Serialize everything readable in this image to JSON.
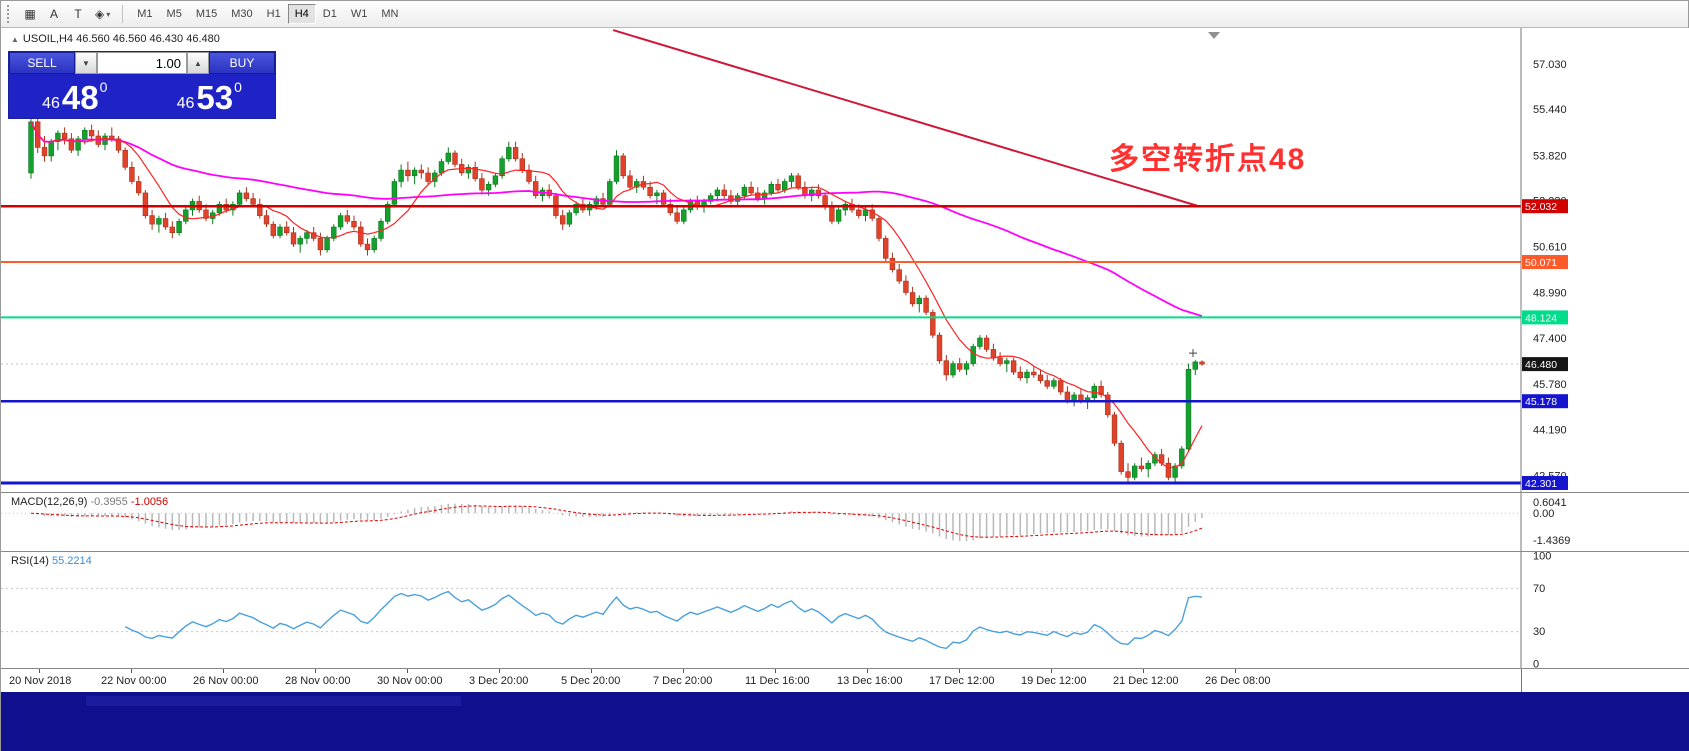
{
  "toolbar": {
    "tools": [
      {
        "name": "grid-tool",
        "glyph": "▦",
        "dropdown": false
      },
      {
        "name": "arrow-text-tool",
        "glyph": "A",
        "dropdown": false
      },
      {
        "name": "text-label-tool",
        "glyph": "T",
        "dropdown": false
      },
      {
        "name": "shapes-tool",
        "glyph": "◈",
        "dropdown": true
      }
    ],
    "timeframes": [
      "M1",
      "M5",
      "M15",
      "M30",
      "H1",
      "H4",
      "D1",
      "W1",
      "MN"
    ],
    "active_timeframe": "H4"
  },
  "header": {
    "collapse_icon": "▲",
    "symbol_line": "USOIL,H4 46.560 46.560 46.430 46.480"
  },
  "one_click": {
    "sell_label": "SELL",
    "buy_label": "BUY",
    "volume": "1.00",
    "spin_down": "▼",
    "spin_up": "▲",
    "sell_price": {
      "prefix": "46",
      "main": "48",
      "sup": "0"
    },
    "buy_price": {
      "prefix": "46",
      "main": "53",
      "sup": "0"
    }
  },
  "macd": {
    "name": "MACD(12,26,9)",
    "value1": "-0.3955",
    "value2": "-1.0056",
    "axis": [
      "0.6041",
      "0.00",
      "-1.4369"
    ],
    "hist_color": "#b8b8b8",
    "signal_color": "#e00000"
  },
  "rsi": {
    "name": "RSI(14)",
    "value": "55.2214",
    "axis": [
      "100",
      "70",
      "30",
      "0"
    ],
    "levels": [
      70,
      30
    ],
    "line_color": "#4aa0dc"
  },
  "chart_data": {
    "type": "candlestick",
    "symbol": "USOIL",
    "timeframe": "H4",
    "ohlc_current": [
      46.56,
      46.56,
      46.43,
      46.48
    ],
    "annotation": {
      "text": "多空转折点48",
      "color": "#ff3030"
    },
    "price_axis_labels": [
      57.03,
      55.44,
      53.82,
      52.23,
      50.61,
      48.99,
      47.4,
      45.78,
      44.19,
      42.57
    ],
    "hlines": [
      {
        "price": 52.032,
        "label": "52.032",
        "color": "#d00000",
        "width": 2.5
      },
      {
        "price": 50.071,
        "label": "50.071",
        "color": "#ff5b2a",
        "width": 2
      },
      {
        "price": 48.124,
        "label": "48.124",
        "color": "#00dd8a",
        "width": 2
      },
      {
        "price": 45.178,
        "label": "45.178",
        "color": "#1515cd",
        "width": 2.5
      },
      {
        "price": 42.301,
        "label": "42.301",
        "color": "#1515cd",
        "width": 3
      }
    ],
    "current_price": {
      "price": 46.48,
      "label": "46.480",
      "color": "#151515"
    },
    "trendline": {
      "from": {
        "bar": 86.5,
        "price": 58.22
      },
      "to": {
        "bar": 173.4,
        "price": 52.04
      },
      "color": "#d01535"
    },
    "ma_lines": [
      {
        "period": 75,
        "color": "#ff00ff",
        "width": 1.8
      },
      {
        "period": 8,
        "color": "#ff2222",
        "width": 1.2
      }
    ],
    "colors": {
      "up_fill": "#14a02d",
      "up_stroke": "#0c7a20",
      "down_fill": "#e0432a",
      "down_stroke": "#a8321e"
    },
    "time_labels": [
      "20 Nov 2018",
      "22 Nov 00:00",
      "26 Nov 00:00",
      "28 Nov 00:00",
      "30 Nov 00:00",
      "3 Dec 20:00",
      "5 Dec 20:00",
      "7 Dec 20:00",
      "11 Dec 16:00",
      "13 Dec 16:00",
      "17 Dec 12:00",
      "19 Dec 12:00",
      "21 Dec 12:00",
      "26 Dec 08:00"
    ],
    "candles": [
      [
        53.2,
        55.3,
        53.0,
        55.0
      ],
      [
        55.0,
        55.1,
        53.9,
        54.1
      ],
      [
        54.1,
        54.5,
        53.6,
        53.8
      ],
      [
        53.8,
        54.4,
        53.6,
        54.3
      ],
      [
        54.3,
        54.7,
        54.0,
        54.6
      ],
      [
        54.6,
        54.8,
        54.2,
        54.4
      ],
      [
        54.4,
        54.6,
        53.9,
        54.0
      ],
      [
        54.0,
        54.5,
        53.8,
        54.4
      ],
      [
        54.4,
        54.8,
        54.2,
        54.7
      ],
      [
        54.7,
        54.9,
        54.3,
        54.5
      ],
      [
        54.5,
        54.7,
        54.1,
        54.2
      ],
      [
        54.2,
        54.6,
        54.0,
        54.5
      ],
      [
        54.5,
        54.8,
        54.3,
        54.4
      ],
      [
        54.4,
        54.5,
        53.9,
        54.0
      ],
      [
        54.0,
        54.1,
        53.3,
        53.4
      ],
      [
        53.4,
        53.6,
        52.8,
        52.9
      ],
      [
        52.9,
        53.1,
        52.4,
        52.5
      ],
      [
        52.5,
        52.6,
        51.6,
        51.7
      ],
      [
        51.7,
        51.9,
        51.2,
        51.4
      ],
      [
        51.4,
        51.7,
        51.1,
        51.6
      ],
      [
        51.6,
        51.8,
        51.2,
        51.3
      ],
      [
        51.3,
        51.5,
        50.9,
        51.1
      ],
      [
        51.1,
        51.6,
        51.0,
        51.5
      ],
      [
        51.5,
        52.0,
        51.4,
        51.9
      ],
      [
        51.9,
        52.3,
        51.7,
        52.2
      ],
      [
        52.2,
        52.4,
        51.8,
        51.9
      ],
      [
        51.9,
        52.1,
        51.5,
        51.6
      ],
      [
        51.6,
        51.9,
        51.4,
        51.8
      ],
      [
        51.8,
        52.2,
        51.7,
        52.1
      ],
      [
        52.1,
        52.3,
        51.8,
        51.9
      ],
      [
        51.9,
        52.2,
        51.7,
        52.1
      ],
      [
        52.1,
        52.6,
        52.0,
        52.5
      ],
      [
        52.5,
        52.7,
        52.2,
        52.3
      ],
      [
        52.3,
        52.5,
        52.0,
        52.1
      ],
      [
        52.1,
        52.3,
        51.6,
        51.7
      ],
      [
        51.7,
        51.9,
        51.3,
        51.4
      ],
      [
        51.4,
        51.5,
        50.9,
        51.0
      ],
      [
        51.0,
        51.4,
        50.9,
        51.3
      ],
      [
        51.3,
        51.5,
        51.0,
        51.1
      ],
      [
        51.1,
        51.3,
        50.6,
        50.7
      ],
      [
        50.7,
        51.0,
        50.4,
        50.9
      ],
      [
        50.9,
        51.2,
        50.7,
        51.1
      ],
      [
        51.1,
        51.3,
        50.8,
        50.9
      ],
      [
        50.9,
        51.1,
        50.3,
        50.5
      ],
      [
        50.5,
        51.0,
        50.4,
        50.9
      ],
      [
        50.9,
        51.4,
        50.8,
        51.3
      ],
      [
        51.3,
        51.8,
        51.2,
        51.7
      ],
      [
        51.7,
        51.9,
        51.4,
        51.5
      ],
      [
        51.5,
        51.7,
        51.2,
        51.3
      ],
      [
        51.3,
        51.5,
        50.6,
        50.7
      ],
      [
        50.7,
        50.9,
        50.3,
        50.5
      ],
      [
        50.5,
        51.0,
        50.4,
        50.9
      ],
      [
        50.9,
        51.6,
        50.8,
        51.5
      ],
      [
        51.5,
        52.2,
        51.4,
        52.1
      ],
      [
        52.1,
        53.0,
        52.0,
        52.9
      ],
      [
        52.9,
        53.5,
        52.7,
        53.3
      ],
      [
        53.3,
        53.6,
        52.9,
        53.1
      ],
      [
        53.1,
        53.4,
        52.8,
        53.3
      ],
      [
        53.3,
        53.5,
        53.0,
        53.2
      ],
      [
        53.2,
        53.4,
        52.8,
        52.9
      ],
      [
        52.9,
        53.3,
        52.7,
        53.2
      ],
      [
        53.2,
        53.7,
        53.1,
        53.6
      ],
      [
        53.6,
        54.1,
        53.5,
        53.9
      ],
      [
        53.9,
        54.0,
        53.4,
        53.5
      ],
      [
        53.5,
        53.7,
        53.1,
        53.2
      ],
      [
        53.2,
        53.5,
        53.0,
        53.4
      ],
      [
        53.4,
        53.6,
        52.9,
        53.0
      ],
      [
        53.0,
        53.2,
        52.5,
        52.6
      ],
      [
        52.6,
        52.9,
        52.4,
        52.8
      ],
      [
        52.8,
        53.2,
        52.7,
        53.1
      ],
      [
        53.1,
        53.8,
        53.0,
        53.7
      ],
      [
        53.7,
        54.3,
        53.6,
        54.1
      ],
      [
        54.1,
        54.3,
        53.6,
        53.7
      ],
      [
        53.7,
        53.9,
        53.2,
        53.3
      ],
      [
        53.3,
        53.5,
        52.8,
        52.9
      ],
      [
        52.9,
        53.1,
        52.3,
        52.4
      ],
      [
        52.4,
        52.7,
        52.2,
        52.6
      ],
      [
        52.6,
        52.8,
        52.3,
        52.4
      ],
      [
        52.4,
        52.5,
        51.6,
        51.7
      ],
      [
        51.7,
        51.9,
        51.2,
        51.4
      ],
      [
        51.4,
        51.9,
        51.3,
        51.8
      ],
      [
        51.8,
        52.2,
        51.7,
        52.1
      ],
      [
        52.1,
        52.3,
        51.8,
        51.9
      ],
      [
        51.9,
        52.2,
        51.7,
        52.1
      ],
      [
        52.1,
        52.4,
        51.9,
        52.3
      ],
      [
        52.3,
        52.5,
        52.0,
        52.1
      ],
      [
        52.1,
        53.0,
        52.0,
        52.9
      ],
      [
        52.9,
        54.0,
        52.8,
        53.8
      ],
      [
        53.8,
        53.9,
        53.0,
        53.1
      ],
      [
        53.1,
        53.3,
        52.6,
        52.7
      ],
      [
        52.7,
        53.0,
        52.5,
        52.9
      ],
      [
        52.9,
        53.1,
        52.6,
        52.7
      ],
      [
        52.7,
        52.9,
        52.3,
        52.4
      ],
      [
        52.4,
        52.6,
        52.1,
        52.5
      ],
      [
        52.5,
        52.6,
        52.0,
        52.1
      ],
      [
        52.1,
        52.3,
        51.7,
        51.8
      ],
      [
        51.8,
        52.0,
        51.4,
        51.5
      ],
      [
        51.5,
        52.0,
        51.4,
        51.9
      ],
      [
        51.9,
        52.3,
        51.8,
        52.2
      ],
      [
        52.2,
        52.4,
        51.9,
        52.0
      ],
      [
        52.0,
        52.3,
        51.8,
        52.2
      ],
      [
        52.2,
        52.5,
        52.1,
        52.4
      ],
      [
        52.4,
        52.7,
        52.2,
        52.6
      ],
      [
        52.6,
        52.8,
        52.3,
        52.4
      ],
      [
        52.4,
        52.6,
        52.1,
        52.2
      ],
      [
        52.2,
        52.5,
        52.0,
        52.4
      ],
      [
        52.4,
        52.8,
        52.3,
        52.7
      ],
      [
        52.7,
        52.9,
        52.4,
        52.5
      ],
      [
        52.5,
        52.7,
        52.2,
        52.3
      ],
      [
        52.3,
        52.6,
        52.1,
        52.5
      ],
      [
        52.5,
        52.9,
        52.4,
        52.8
      ],
      [
        52.8,
        53.0,
        52.5,
        52.6
      ],
      [
        52.6,
        53.0,
        52.5,
        52.9
      ],
      [
        52.9,
        53.2,
        52.7,
        53.1
      ],
      [
        53.1,
        53.2,
        52.6,
        52.7
      ],
      [
        52.7,
        52.9,
        52.3,
        52.4
      ],
      [
        52.4,
        52.7,
        52.2,
        52.6
      ],
      [
        52.6,
        52.8,
        52.3,
        52.4
      ],
      [
        52.4,
        52.5,
        51.9,
        52.0
      ],
      [
        52.0,
        52.2,
        51.4,
        51.5
      ],
      [
        51.5,
        52.0,
        51.4,
        51.9
      ],
      [
        51.9,
        52.2,
        51.7,
        52.1
      ],
      [
        52.1,
        52.3,
        51.8,
        51.9
      ],
      [
        51.9,
        52.1,
        51.6,
        51.7
      ],
      [
        51.7,
        52.0,
        51.5,
        51.9
      ],
      [
        51.9,
        52.1,
        51.5,
        51.6
      ],
      [
        51.6,
        51.7,
        50.8,
        50.9
      ],
      [
        50.9,
        51.0,
        50.1,
        50.2
      ],
      [
        50.2,
        50.4,
        49.7,
        49.8
      ],
      [
        49.8,
        50.0,
        49.3,
        49.4
      ],
      [
        49.4,
        49.6,
        48.9,
        49.0
      ],
      [
        49.0,
        49.2,
        48.5,
        48.6
      ],
      [
        48.6,
        48.9,
        48.3,
        48.8
      ],
      [
        48.8,
        48.9,
        48.2,
        48.3
      ],
      [
        48.3,
        48.4,
        47.4,
        47.5
      ],
      [
        47.5,
        47.6,
        46.5,
        46.6
      ],
      [
        46.6,
        46.8,
        45.9,
        46.1
      ],
      [
        46.1,
        46.6,
        46.0,
        46.5
      ],
      [
        46.5,
        46.7,
        46.2,
        46.3
      ],
      [
        46.3,
        46.6,
        46.1,
        46.5
      ],
      [
        46.5,
        47.2,
        46.4,
        47.1
      ],
      [
        47.1,
        47.5,
        47.0,
        47.4
      ],
      [
        47.4,
        47.5,
        46.9,
        47.0
      ],
      [
        47.0,
        47.2,
        46.6,
        46.7
      ],
      [
        46.7,
        46.9,
        46.4,
        46.5
      ],
      [
        46.5,
        46.7,
        46.2,
        46.6
      ],
      [
        46.6,
        46.7,
        46.1,
        46.2
      ],
      [
        46.2,
        46.4,
        45.9,
        46.0
      ],
      [
        46.0,
        46.3,
        45.8,
        46.2
      ],
      [
        46.2,
        46.4,
        46.0,
        46.1
      ],
      [
        46.1,
        46.3,
        45.8,
        45.9
      ],
      [
        45.9,
        46.1,
        45.6,
        45.7
      ],
      [
        45.7,
        46.0,
        45.6,
        45.9
      ],
      [
        45.9,
        46.0,
        45.4,
        45.5
      ],
      [
        45.5,
        45.7,
        45.1,
        45.2
      ],
      [
        45.2,
        45.5,
        45.0,
        45.4
      ],
      [
        45.4,
        45.6,
        45.1,
        45.2
      ],
      [
        45.2,
        45.4,
        44.9,
        45.3
      ],
      [
        45.3,
        45.8,
        45.2,
        45.7
      ],
      [
        45.7,
        45.9,
        45.3,
        45.4
      ],
      [
        45.4,
        45.5,
        44.6,
        44.7
      ],
      [
        44.7,
        44.8,
        43.6,
        43.7
      ],
      [
        43.7,
        43.8,
        42.6,
        42.7
      ],
      [
        42.7,
        43.0,
        42.3,
        42.5
      ],
      [
        42.5,
        43.0,
        42.4,
        42.9
      ],
      [
        42.9,
        43.2,
        42.7,
        42.8
      ],
      [
        42.8,
        43.1,
        42.5,
        43.0
      ],
      [
        43.0,
        43.4,
        42.9,
        43.3
      ],
      [
        43.3,
        43.5,
        42.9,
        43.0
      ],
      [
        43.0,
        43.2,
        42.4,
        42.5
      ],
      [
        42.5,
        43.0,
        42.3,
        42.9
      ],
      [
        42.9,
        43.6,
        42.8,
        43.5
      ],
      [
        43.5,
        46.5,
        43.4,
        46.3
      ],
      [
        46.3,
        46.62,
        46.1,
        46.56
      ],
      [
        46.56,
        46.61,
        46.43,
        46.48
      ]
    ]
  }
}
